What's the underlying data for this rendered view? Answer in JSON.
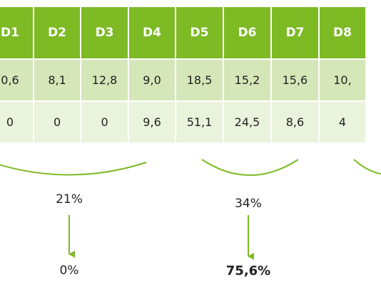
{
  "table": {
    "headers": [
      "D1",
      "D2",
      "D3",
      "D4",
      "D5",
      "D6",
      "D7",
      "D8"
    ],
    "rows": [
      [
        "0,6",
        "8,1",
        "12,8",
        "9,0",
        "18,5",
        "15,2",
        "15,6",
        "10,"
      ],
      [
        "0",
        "0",
        "0",
        "9,6",
        "51,1",
        "24,5",
        "8,6",
        "4"
      ]
    ]
  },
  "annotations": {
    "group1_top": "21%",
    "group1_bottom": "0%",
    "group2_top": "34%",
    "group2_bottom": "75,6%"
  },
  "colors": {
    "header_bg": "#7dba24",
    "row1_bg": "#d5e7b8",
    "row2_bg": "#eaf3dc",
    "accent": "#7dba24"
  }
}
